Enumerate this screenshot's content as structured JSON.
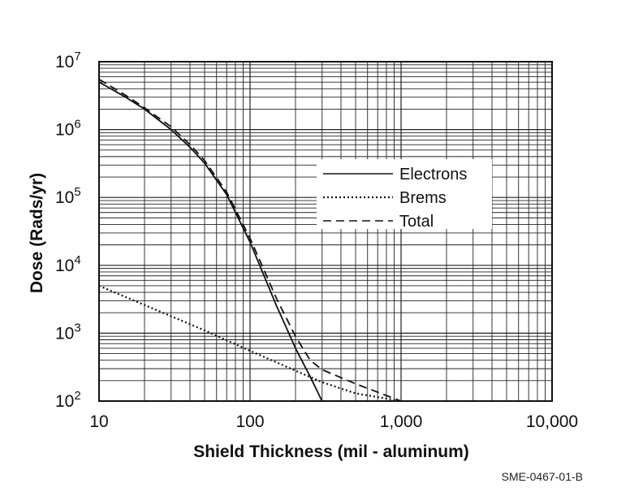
{
  "chart_data": {
    "type": "line",
    "xlabel": "Shield Thickness (mil - aluminum)",
    "ylabel": "Dose (Rads/yr)",
    "x_scale": "log",
    "y_scale": "log",
    "xlim": [
      10,
      10000
    ],
    "ylim": [
      100,
      10000000
    ],
    "x_ticks": [
      {
        "value": 10,
        "label": "10"
      },
      {
        "value": 100,
        "label": "100"
      },
      {
        "value": 1000,
        "label": "1,000"
      },
      {
        "value": 10000,
        "label": "10,000"
      }
    ],
    "y_ticks": [
      {
        "value": 100,
        "base": "10",
        "exp": "2"
      },
      {
        "value": 1000,
        "base": "10",
        "exp": "3"
      },
      {
        "value": 10000,
        "base": "10",
        "exp": "4"
      },
      {
        "value": 100000,
        "base": "10",
        "exp": "5"
      },
      {
        "value": 1000000,
        "base": "10",
        "exp": "6"
      },
      {
        "value": 10000000,
        "base": "10",
        "exp": "7"
      }
    ],
    "grid": true,
    "legend_position": "upper-right",
    "series": [
      {
        "name": "Electrons",
        "style": "solid",
        "x": [
          10,
          15,
          20,
          30,
          40,
          50,
          70,
          100,
          150,
          200,
          250,
          300
        ],
        "y": [
          5000000,
          3000000,
          2000000,
          1000000,
          550000,
          320000,
          110000,
          22000,
          2500,
          600,
          230,
          100
        ]
      },
      {
        "name": "Brems",
        "style": "dotted",
        "x": [
          10,
          20,
          50,
          100,
          200,
          300,
          500,
          1000
        ],
        "y": [
          5000,
          2600,
          1100,
          550,
          280,
          190,
          130,
          100
        ]
      },
      {
        "name": "Total",
        "style": "dashed",
        "x": [
          10,
          15,
          20,
          30,
          40,
          50,
          70,
          100,
          150,
          200,
          250,
          300,
          500,
          1000
        ],
        "y": [
          5500000,
          3200000,
          2100000,
          1100000,
          600000,
          350000,
          120000,
          25000,
          3200,
          900,
          400,
          290,
          180,
          100
        ]
      }
    ]
  },
  "figure_id": "SME-0467-01-B"
}
